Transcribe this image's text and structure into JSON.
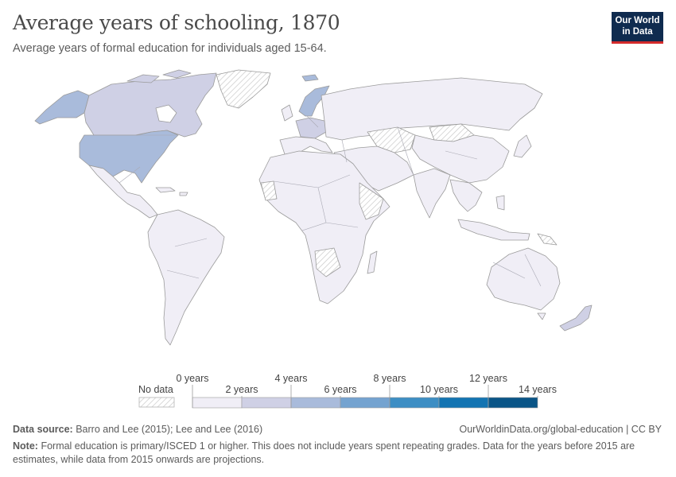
{
  "header": {
    "title": "Average years of schooling, 1870",
    "subtitle": "Average years of formal education for individuals aged 15-64.",
    "logo_line1": "Our World",
    "logo_line2": "in Data"
  },
  "legend": {
    "no_data_label": "No data",
    "no_data_color": "#ffffff",
    "bins": [
      {
        "from": 0,
        "to": 2,
        "color": "#f0eef6"
      },
      {
        "from": 2,
        "to": 4,
        "color": "#cfd0e5"
      },
      {
        "from": 4,
        "to": 6,
        "color": "#a9bbdb"
      },
      {
        "from": 6,
        "to": 8,
        "color": "#74a3d0"
      },
      {
        "from": 8,
        "to": 10,
        "color": "#3d8ec4"
      },
      {
        "from": 10,
        "to": 12,
        "color": "#1374b2"
      },
      {
        "from": 12,
        "to": 14,
        "color": "#0a5587"
      }
    ],
    "top_labels": [
      "0 years",
      "4 years",
      "8 years",
      "12 years"
    ],
    "bottom_labels": [
      "2 years",
      "6 years",
      "10 years",
      "14 years"
    ]
  },
  "map": {
    "regions": [
      {
        "name": "Canada",
        "bin": "2-4"
      },
      {
        "name": "United States",
        "bin": "4-6"
      },
      {
        "name": "Alaska",
        "bin": "4-6"
      },
      {
        "name": "Norway / Sweden",
        "bin": "4-6"
      },
      {
        "name": "Central Europe",
        "bin": "2-4"
      },
      {
        "name": "New Zealand",
        "bin": "2-4"
      },
      {
        "name": "Greenland",
        "bin": "No data"
      },
      {
        "name": "Rest of world",
        "bin": "0-2"
      }
    ]
  },
  "footer": {
    "source_label": "Data source:",
    "source_text": "Barro and Lee (2015); Lee and Lee (2016)",
    "url": "OurWorldinData.org/global-education | CC BY",
    "note_label": "Note:",
    "note_text": "Formal education is primary/ISCED 1 or higher. This does not include years spent repeating grades. Data for the years before 2015 are estimates, while data from 2015 onwards are projections."
  }
}
